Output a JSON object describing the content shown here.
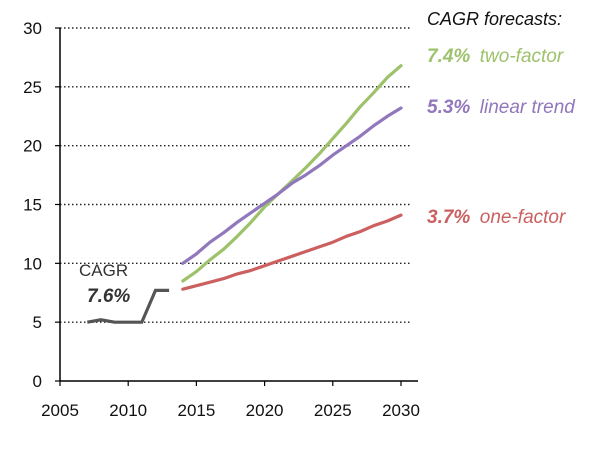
{
  "chart_data": {
    "type": "line",
    "xlim": [
      2005,
      2031
    ],
    "ylim": [
      0,
      30
    ],
    "x_ticks": [
      "2005",
      "2010",
      "2015",
      "2020",
      "2025",
      "2030"
    ],
    "y_ticks": [
      "0",
      "5",
      "10",
      "15",
      "20",
      "25",
      "30"
    ],
    "grid": "horizontal dotted",
    "legend_title": "CAGR forecasts:",
    "historical": {
      "label": "CAGR",
      "rate": "7.6%",
      "color": "#555555",
      "x": [
        2007,
        2008,
        2009,
        2010,
        2011,
        2012,
        2013
      ],
      "y": [
        5.0,
        5.2,
        5.0,
        5.0,
        5.0,
        7.7,
        7.7
      ]
    },
    "series": [
      {
        "name": "two-factor",
        "rate": "7.4%",
        "color": "#9dc26b",
        "x": [
          2014,
          2015,
          2016,
          2017,
          2018,
          2019,
          2020,
          2021,
          2022,
          2023,
          2024,
          2025,
          2026,
          2027,
          2028,
          2029,
          2030
        ],
        "y": [
          8.5,
          9.3,
          10.3,
          11.2,
          12.3,
          13.5,
          14.8,
          15.9,
          17.0,
          18.1,
          19.3,
          20.6,
          21.9,
          23.3,
          24.5,
          25.8,
          26.8
        ]
      },
      {
        "name": "linear trend",
        "rate": "5.3%",
        "color": "#9177bb",
        "x": [
          2014,
          2015,
          2016,
          2017,
          2018,
          2019,
          2020,
          2021,
          2022,
          2023,
          2024,
          2025,
          2026,
          2027,
          2028,
          2029,
          2030
        ],
        "y": [
          10.0,
          10.8,
          11.8,
          12.6,
          13.5,
          14.3,
          15.1,
          15.9,
          16.8,
          17.5,
          18.3,
          19.2,
          20.0,
          20.8,
          21.7,
          22.5,
          23.2
        ]
      },
      {
        "name": "one-factor",
        "rate": "3.7%",
        "color": "#cc6060",
        "x": [
          2014,
          2015,
          2016,
          2017,
          2018,
          2019,
          2020,
          2021,
          2022,
          2023,
          2024,
          2025,
          2026,
          2027,
          2028,
          2029,
          2030
        ],
        "y": [
          7.8,
          8.1,
          8.4,
          8.7,
          9.1,
          9.4,
          9.8,
          10.2,
          10.6,
          11.0,
          11.4,
          11.8,
          12.3,
          12.7,
          13.2,
          13.6,
          14.1
        ]
      }
    ]
  }
}
